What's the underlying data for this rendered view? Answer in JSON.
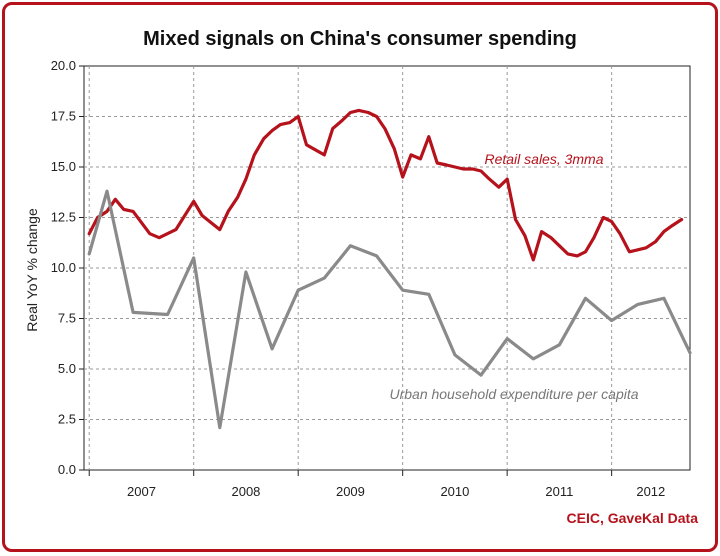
{
  "chart_data": {
    "type": "line",
    "title": "Mixed signals on China's consumer spending",
    "ylabel": "Real YoY % change",
    "xlabel": "",
    "ylim": [
      0,
      20
    ],
    "yticks": [
      "0.0",
      "2.5",
      "5.0",
      "7.5",
      "10.0",
      "12.5",
      "15.0",
      "17.5",
      "20.0"
    ],
    "xlim": [
      2006.95,
      2012.75
    ],
    "x_tick_labels": [
      "2007",
      "2008",
      "2009",
      "2010",
      "2011",
      "2012"
    ],
    "grid": "dashed",
    "source": "CEIC, GaveKal Data",
    "series": [
      {
        "name": "Retail sales, 3mma",
        "color": "#b5121b",
        "points": [
          [
            2007.0,
            11.7
          ],
          [
            2007.08,
            12.5
          ],
          [
            2007.17,
            12.8
          ],
          [
            2007.25,
            13.4
          ],
          [
            2007.33,
            12.9
          ],
          [
            2007.42,
            12.8
          ],
          [
            2007.58,
            11.7
          ],
          [
            2007.67,
            11.5
          ],
          [
            2007.83,
            11.9
          ],
          [
            2008.0,
            13.3
          ],
          [
            2008.08,
            12.6
          ],
          [
            2008.25,
            11.9
          ],
          [
            2008.33,
            12.8
          ],
          [
            2008.42,
            13.5
          ],
          [
            2008.5,
            14.4
          ],
          [
            2008.58,
            15.6
          ],
          [
            2008.67,
            16.4
          ],
          [
            2008.75,
            16.8
          ],
          [
            2008.83,
            17.1
          ],
          [
            2008.92,
            17.2
          ],
          [
            2009.0,
            17.5
          ],
          [
            2009.08,
            16.1
          ],
          [
            2009.25,
            15.6
          ],
          [
            2009.33,
            16.9
          ],
          [
            2009.42,
            17.3
          ],
          [
            2009.5,
            17.7
          ],
          [
            2009.58,
            17.8
          ],
          [
            2009.67,
            17.7
          ],
          [
            2009.75,
            17.5
          ],
          [
            2009.83,
            16.9
          ],
          [
            2009.92,
            15.9
          ],
          [
            2010.0,
            14.5
          ],
          [
            2010.08,
            15.6
          ],
          [
            2010.17,
            15.4
          ],
          [
            2010.25,
            16.5
          ],
          [
            2010.33,
            15.2
          ],
          [
            2010.42,
            15.1
          ],
          [
            2010.5,
            15.0
          ],
          [
            2010.58,
            14.9
          ],
          [
            2010.67,
            14.9
          ],
          [
            2010.75,
            14.8
          ],
          [
            2010.83,
            14.4
          ],
          [
            2010.92,
            14.0
          ],
          [
            2011.0,
            14.4
          ],
          [
            2011.08,
            12.4
          ],
          [
            2011.17,
            11.6
          ],
          [
            2011.25,
            10.4
          ],
          [
            2011.33,
            11.8
          ],
          [
            2011.42,
            11.5
          ],
          [
            2011.5,
            11.1
          ],
          [
            2011.58,
            10.7
          ],
          [
            2011.67,
            10.6
          ],
          [
            2011.75,
            10.8
          ],
          [
            2011.83,
            11.5
          ],
          [
            2011.92,
            12.5
          ],
          [
            2012.0,
            12.3
          ],
          [
            2012.08,
            11.7
          ],
          [
            2012.17,
            10.8
          ],
          [
            2012.25,
            10.9
          ],
          [
            2012.33,
            11.0
          ],
          [
            2012.42,
            11.3
          ],
          [
            2012.5,
            11.8
          ],
          [
            2012.58,
            12.1
          ],
          [
            2012.67,
            12.4
          ]
        ]
      },
      {
        "name": "Urban household expenditure per capita",
        "color": "#8a8a8a",
        "points": [
          [
            2007.0,
            10.7
          ],
          [
            2007.17,
            13.8
          ],
          [
            2007.42,
            7.8
          ],
          [
            2007.75,
            7.7
          ],
          [
            2008.0,
            10.5
          ],
          [
            2008.25,
            2.1
          ],
          [
            2008.5,
            9.8
          ],
          [
            2008.75,
            6.0
          ],
          [
            2009.0,
            8.9
          ],
          [
            2009.25,
            9.5
          ],
          [
            2009.5,
            11.1
          ],
          [
            2009.75,
            10.6
          ],
          [
            2010.0,
            8.9
          ],
          [
            2010.25,
            8.7
          ],
          [
            2010.5,
            5.7
          ],
          [
            2010.75,
            4.7
          ],
          [
            2011.0,
            6.5
          ],
          [
            2011.25,
            5.5
          ],
          [
            2011.5,
            6.2
          ],
          [
            2011.75,
            8.5
          ],
          [
            2012.0,
            7.4
          ],
          [
            2012.25,
            8.2
          ],
          [
            2012.5,
            8.5
          ],
          [
            2012.75,
            5.8
          ]
        ]
      }
    ]
  }
}
